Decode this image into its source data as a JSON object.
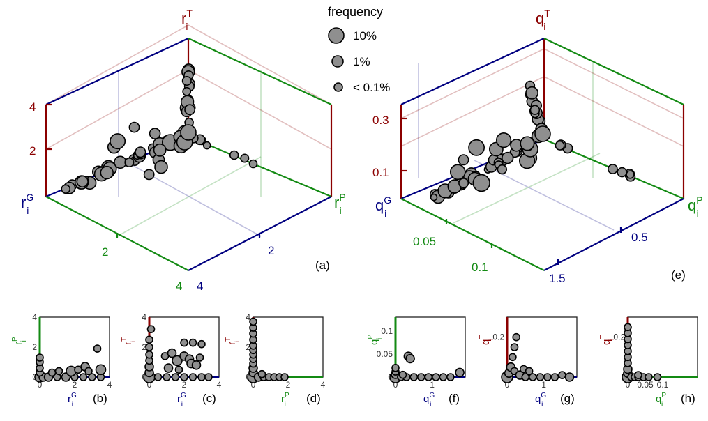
{
  "colors": {
    "T": "#8b0000",
    "P": "#138a13",
    "G": "#000080",
    "point_fill": "#8f8f8f"
  },
  "legend": {
    "title": "frequency",
    "items": [
      "10%",
      "1%",
      "< 0.1%"
    ]
  },
  "chart_data": [
    {
      "id": "a",
      "panel_label": "(a)",
      "type": "scatter",
      "axes": {
        "x": {
          "label": "r",
          "sub": "i",
          "sup": "G"
        },
        "y": {
          "label": "r",
          "sub": "i",
          "sup": "P"
        },
        "z": {
          "label": "r",
          "sub": "i",
          "sup": "T"
        }
      },
      "ticks": {
        "G": [
          "2",
          "4"
        ],
        "P": [
          "2",
          "4"
        ],
        "T": [
          "2",
          "4"
        ]
      },
      "clusters": {
        "T_axis_max": 3.4,
        "G_axis_max": 4.5,
        "P_axis_max": 1.7
      }
    },
    {
      "id": "e",
      "panel_label": "(e)",
      "type": "scatter",
      "axes": {
        "x": {
          "label": "q",
          "sub": "i",
          "sup": "G"
        },
        "y": {
          "label": "q",
          "sub": "i",
          "sup": "P"
        },
        "z": {
          "label": "q",
          "sub": "i",
          "sup": "T"
        }
      },
      "ticks": {
        "G": [
          "0.05",
          "0.1"
        ],
        "P": [
          "0.5",
          "1.5"
        ],
        "T": [
          "0.1",
          "0.3"
        ]
      }
    },
    {
      "id": "b",
      "panel_label": "(b)",
      "type": "scatter",
      "xlabel": {
        "t": "r",
        "sub": "i",
        "sup": "G"
      },
      "ylabel": {
        "t": "r",
        "sub": "i",
        "sup": "P"
      },
      "xticks": [
        "0",
        "2",
        "4"
      ],
      "yticks": [
        "0",
        "2",
        "4"
      ],
      "xlim": [
        0,
        4
      ],
      "ylim": [
        0,
        4
      ],
      "points": [
        [
          0,
          0,
          7
        ],
        [
          0.2,
          0,
          6
        ],
        [
          0.5,
          0,
          6
        ],
        [
          1,
          0,
          5
        ],
        [
          1.5,
          0,
          6
        ],
        [
          2,
          0,
          5
        ],
        [
          2.5,
          0,
          5
        ],
        [
          3,
          0,
          5
        ],
        [
          3.5,
          0,
          5
        ],
        [
          0,
          0.3,
          5
        ],
        [
          0,
          0.6,
          5
        ],
        [
          0,
          1,
          5
        ],
        [
          0,
          1.3,
          5
        ],
        [
          1.1,
          0.4,
          5
        ],
        [
          1.8,
          0.4,
          7
        ],
        [
          2.6,
          0.7,
          6
        ],
        [
          2.8,
          0.4,
          5
        ],
        [
          3.5,
          0.5,
          7
        ],
        [
          3.3,
          1.9,
          5
        ],
        [
          2.2,
          0.5,
          5
        ],
        [
          0.7,
          0.3,
          5
        ]
      ]
    },
    {
      "id": "c",
      "panel_label": "(c)",
      "type": "scatter",
      "xlabel": {
        "t": "r",
        "sub": "i",
        "sup": "G"
      },
      "ylabel": {
        "t": "r",
        "sub": "i",
        "sup": "T"
      },
      "xticks": [
        "0",
        "2",
        "4"
      ],
      "yticks": [
        "0",
        "2",
        "4"
      ],
      "xlim": [
        0,
        4
      ],
      "ylim": [
        0,
        4
      ],
      "points": [
        [
          0,
          0,
          8
        ],
        [
          0,
          0.3,
          6
        ],
        [
          0,
          0.7,
          6
        ],
        [
          0,
          1.1,
          5
        ],
        [
          0,
          1.5,
          5
        ],
        [
          0,
          2,
          5
        ],
        [
          0,
          2.5,
          5
        ],
        [
          0.1,
          3.2,
          5
        ],
        [
          0.5,
          0,
          5
        ],
        [
          1,
          0,
          5
        ],
        [
          1.5,
          0,
          5
        ],
        [
          2,
          0,
          5
        ],
        [
          2.5,
          0,
          5
        ],
        [
          3,
          0,
          5
        ],
        [
          3.4,
          0,
          5
        ],
        [
          0.9,
          1.4,
          5
        ],
        [
          1.3,
          1.6,
          6
        ],
        [
          1.6,
          1.1,
          7
        ],
        [
          2,
          1.4,
          6
        ],
        [
          2.3,
          1.2,
          6
        ],
        [
          2.4,
          0.9,
          6
        ],
        [
          2.7,
          0.8,
          6
        ],
        [
          2,
          2.3,
          5
        ],
        [
          2.5,
          2.3,
          5
        ],
        [
          3,
          2.2,
          5
        ],
        [
          1.1,
          0.6,
          6
        ],
        [
          2.9,
          1.3,
          5
        ],
        [
          1.7,
          0.5,
          5
        ]
      ]
    },
    {
      "id": "d",
      "panel_label": "(d)",
      "type": "scatter",
      "xlabel": {
        "t": "r",
        "sub": "i",
        "sup": "P"
      },
      "ylabel": {
        "t": "r",
        "sub": "i",
        "sup": "T"
      },
      "xticks": [
        "0",
        "2",
        "4"
      ],
      "yticks": [
        "0",
        "2",
        "4"
      ],
      "xlim": [
        0,
        4
      ],
      "ylim": [
        0,
        4
      ],
      "points": [
        [
          0,
          0,
          8
        ],
        [
          0,
          0.3,
          6
        ],
        [
          0,
          0.6,
          6
        ],
        [
          0,
          0.9,
          5
        ],
        [
          0,
          1.2,
          5
        ],
        [
          0,
          1.5,
          5
        ],
        [
          0,
          1.8,
          5
        ],
        [
          0,
          2.1,
          5
        ],
        [
          0,
          2.5,
          5
        ],
        [
          0,
          2.9,
          5
        ],
        [
          0,
          3.3,
          5
        ],
        [
          0,
          3.7,
          5
        ],
        [
          0.3,
          0,
          6
        ],
        [
          0.6,
          0,
          5
        ],
        [
          0.9,
          0,
          5
        ],
        [
          1.2,
          0,
          5
        ],
        [
          1.5,
          0,
          5
        ],
        [
          1.8,
          0,
          5
        ],
        [
          0.5,
          0.2,
          5
        ]
      ]
    },
    {
      "id": "f",
      "panel_label": "(f)",
      "type": "scatter",
      "xlabel": {
        "t": "q",
        "sub": "i",
        "sup": "G"
      },
      "ylabel": {
        "t": "q",
        "sub": "i",
        "sup": "P"
      },
      "xticks": [
        "0",
        "1"
      ],
      "yticks": [
        "0",
        "0.05",
        "0.1"
      ],
      "xlim": [
        0,
        1.9
      ],
      "ylim": [
        0,
        0.13
      ],
      "points": [
        [
          0,
          0,
          8
        ],
        [
          0,
          0.006,
          6
        ],
        [
          0,
          0.012,
          5
        ],
        [
          0,
          0.02,
          5
        ],
        [
          0.15,
          0,
          5
        ],
        [
          0.3,
          0,
          5
        ],
        [
          0.5,
          0,
          5
        ],
        [
          0.7,
          0,
          5
        ],
        [
          0.9,
          0,
          5
        ],
        [
          1.1,
          0,
          5
        ],
        [
          1.3,
          0,
          5
        ],
        [
          1.5,
          0,
          5
        ],
        [
          0.35,
          0.045,
          6
        ],
        [
          0.4,
          0.04,
          6
        ],
        [
          1.75,
          0.01,
          6
        ],
        [
          0.2,
          0.005,
          5
        ]
      ]
    },
    {
      "id": "g",
      "panel_label": "(g)",
      "type": "scatter",
      "xlabel": {
        "t": "q",
        "sub": "i",
        "sup": "G"
      },
      "ylabel": {
        "t": "q",
        "sub": "i",
        "sup": "T"
      },
      "xticks": [
        "0",
        "1"
      ],
      "yticks": [
        "0.2"
      ],
      "xlim": [
        0,
        1.9
      ],
      "ylim": [
        0,
        0.3
      ],
      "points": [
        [
          0,
          0,
          8
        ],
        [
          0.05,
          0.02,
          6
        ],
        [
          0.1,
          0.05,
          6
        ],
        [
          0.15,
          0.1,
          5
        ],
        [
          0.2,
          0.15,
          5
        ],
        [
          0.25,
          0.2,
          5
        ],
        [
          0.2,
          0.03,
          5
        ],
        [
          0.35,
          0.01,
          6
        ],
        [
          0.5,
          0,
          5
        ],
        [
          0.7,
          0,
          5
        ],
        [
          0.9,
          0,
          5
        ],
        [
          1.1,
          0,
          5
        ],
        [
          1.3,
          0,
          5
        ],
        [
          1.5,
          0.01,
          5
        ],
        [
          1.7,
          0,
          6
        ],
        [
          0.45,
          0.04,
          5
        ],
        [
          0.6,
          0.03,
          5
        ]
      ]
    },
    {
      "id": "h",
      "panel_label": "(h)",
      "type": "scatter",
      "xlabel": {
        "t": "q",
        "sub": "i",
        "sup": "P"
      },
      "ylabel": {
        "t": "q",
        "sub": "i",
        "sup": "T"
      },
      "xticks": [
        "0",
        "0.05",
        "0.1"
      ],
      "yticks": [
        "0.2"
      ],
      "xlim": [
        0,
        0.2
      ],
      "ylim": [
        0,
        0.3
      ],
      "points": [
        [
          0,
          0,
          8
        ],
        [
          0,
          0.02,
          6
        ],
        [
          0,
          0.04,
          6
        ],
        [
          0,
          0.07,
          5
        ],
        [
          0,
          0.1,
          5
        ],
        [
          0,
          0.13,
          5
        ],
        [
          0,
          0.16,
          5
        ],
        [
          0,
          0.19,
          5
        ],
        [
          0,
          0.22,
          5
        ],
        [
          0,
          0.25,
          5
        ],
        [
          0.01,
          0,
          5
        ],
        [
          0.02,
          0,
          5
        ],
        [
          0.03,
          0,
          5
        ],
        [
          0.045,
          0,
          5
        ],
        [
          0.06,
          0,
          5
        ],
        [
          0.085,
          0,
          5
        ],
        [
          0.03,
          0.01,
          5
        ]
      ]
    }
  ]
}
